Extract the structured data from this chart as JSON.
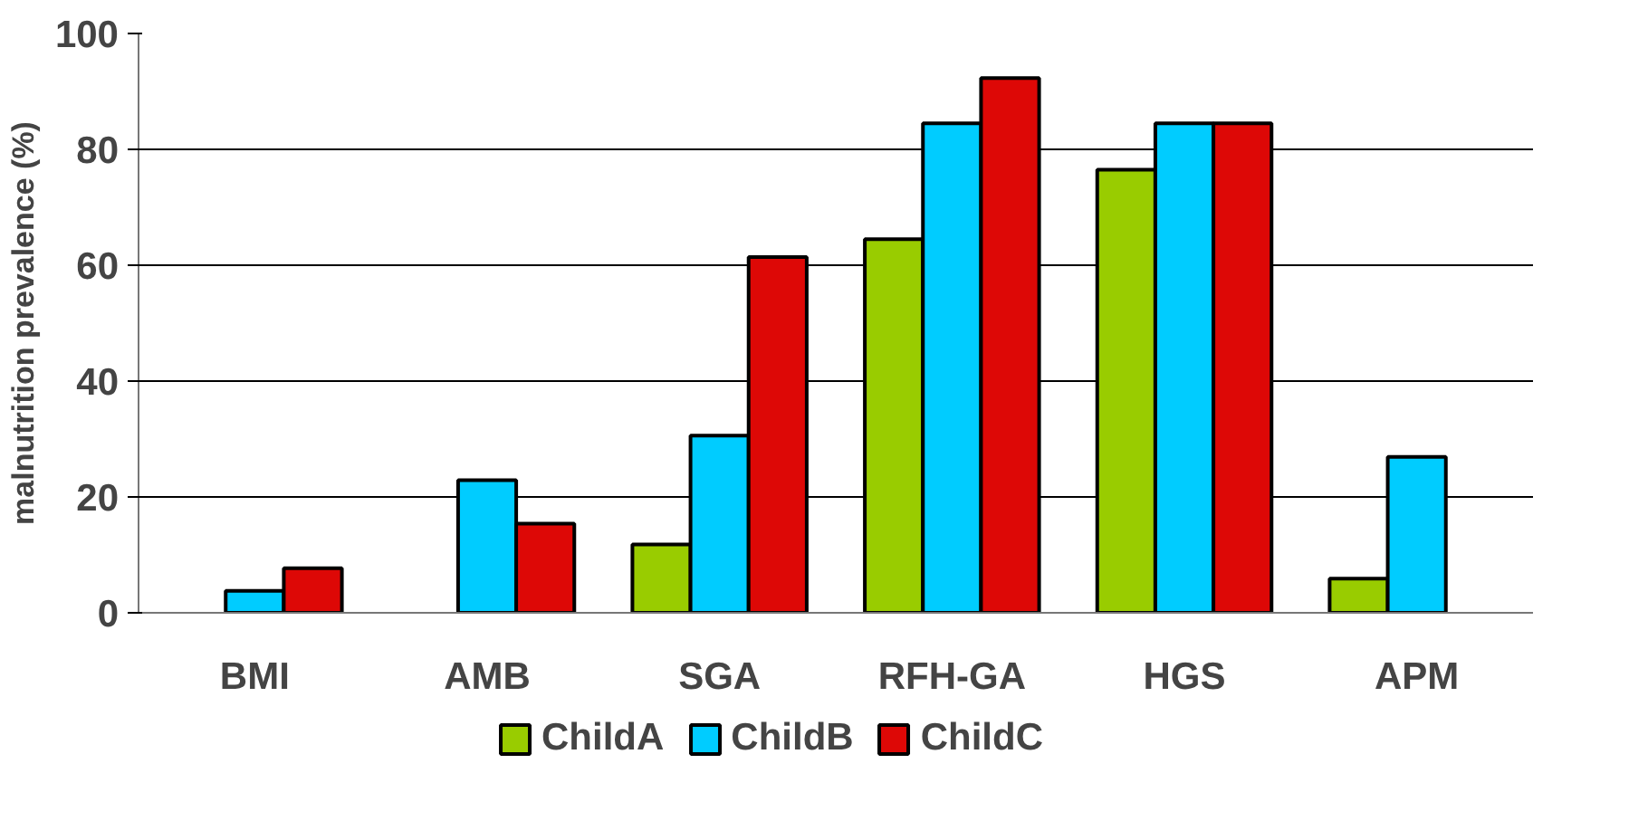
{
  "chart_data": {
    "type": "bar",
    "ylabel": "malnutrition prevalence (%)",
    "categories": [
      "BMI",
      "AMB",
      "SGA",
      "RFH-GA",
      "HGS",
      "APM"
    ],
    "series": [
      {
        "name": "ChildA",
        "color": "#99cc00",
        "values": [
          null,
          null,
          11.8,
          64.5,
          76.5,
          5.9
        ]
      },
      {
        "name": "ChildB",
        "color": "#00ccff",
        "values": [
          3.8,
          22.9,
          30.6,
          84.5,
          84.5,
          26.9
        ]
      },
      {
        "name": "ChildC",
        "color": "#dd0806",
        "values": [
          7.7,
          15.4,
          61.4,
          92.3,
          84.5,
          null
        ]
      }
    ],
    "ylim": [
      0,
      100
    ],
    "yticks": [
      0,
      20,
      40,
      60,
      80,
      100
    ],
    "grid": "y",
    "legend": "bottom"
  }
}
